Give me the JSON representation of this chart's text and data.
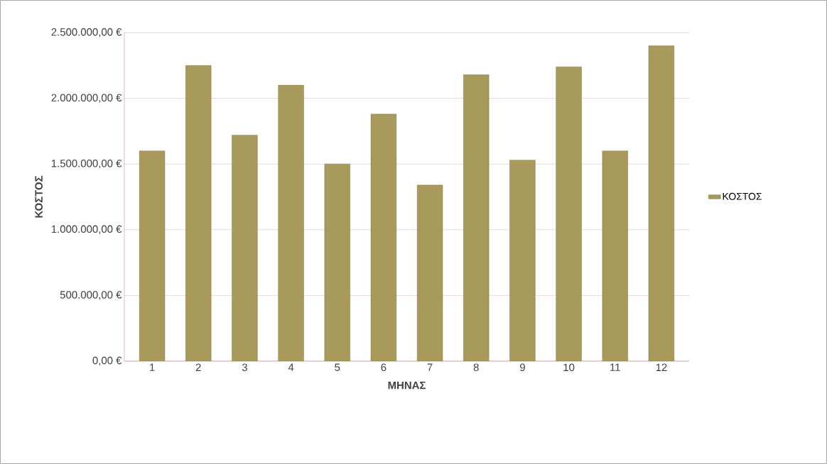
{
  "chart_data": {
    "type": "bar",
    "xlabel": "ΜΗΝΑΣ",
    "ylabel": "ΚΟΣΤΟΣ",
    "categories": [
      "1",
      "2",
      "3",
      "4",
      "5",
      "6",
      "7",
      "8",
      "9",
      "10",
      "11",
      "12"
    ],
    "series": [
      {
        "name": "ΚΟΣΤΟΣ",
        "color": "#a89a5a",
        "values": [
          1600000,
          2250000,
          1720000,
          2100000,
          1500000,
          1880000,
          1340000,
          2180000,
          1530000,
          2240000,
          1600000,
          2400000
        ]
      }
    ],
    "ylim": [
      0,
      2500000
    ],
    "yticks": [
      {
        "value": 0,
        "label": "0,00 €"
      },
      {
        "value": 500000,
        "label": "500.000,00 €"
      },
      {
        "value": 1000000,
        "label": "1.000.000,00 €"
      },
      {
        "value": 1500000,
        "label": "1.500.000,00 €"
      },
      {
        "value": 2000000,
        "label": "2.000.000,00 €"
      },
      {
        "value": 2500000,
        "label": "2.500.000,00 €"
      }
    ],
    "grid": "y",
    "legend": "right"
  }
}
